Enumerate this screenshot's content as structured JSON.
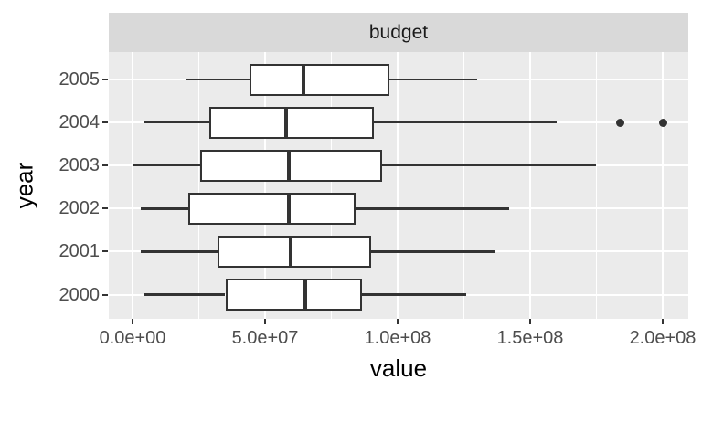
{
  "figure": {
    "background": "#FFFFFF",
    "strip_bg": "#D9D9D9",
    "panel_bg": "#EBEBEB",
    "grid_color": "#FFFFFF",
    "box_stroke": "#333333",
    "box_fill": "#FFFFFF",
    "axis_text_color": "#4D4D4D",
    "axis_title_color": "#000000"
  },
  "chart_data": {
    "type": "boxplot",
    "orientation": "horizontal",
    "facet": "budget",
    "xlabel": "value",
    "ylabel": "year",
    "legend": "none",
    "grid": "on",
    "x_axis": {
      "tick_labels": [
        "0.0e+00",
        "5.0e+07",
        "1.0e+08",
        "1.5e+08",
        "2.0e+08"
      ],
      "tick_values": [
        0,
        50000000,
        100000000,
        150000000,
        200000000
      ],
      "minor_tick_values": [
        25000000,
        75000000,
        125000000,
        175000000
      ],
      "range": [
        -9000000,
        209000000
      ]
    },
    "categories": [
      "2005",
      "2004",
      "2003",
      "2002",
      "2001",
      "2000"
    ],
    "series": [
      {
        "year": "2005",
        "whisker_min": 20000000,
        "q1": 44000000,
        "median": 64500000,
        "q3": 97000000,
        "whisker_max": 130000000,
        "outliers": []
      },
      {
        "year": "2004",
        "whisker_min": 4500000,
        "q1": 29000000,
        "median": 58000000,
        "q3": 91000000,
        "whisker_max": 160000000,
        "outliers": [
          184000000,
          200000000
        ]
      },
      {
        "year": "2003",
        "whisker_min": 500000,
        "q1": 25500000,
        "median": 59000000,
        "q3": 94000000,
        "whisker_max": 175000000,
        "outliers": []
      },
      {
        "year": "2002",
        "whisker_min": 3000000,
        "q1": 21000000,
        "median": 59000000,
        "q3": 84000000,
        "whisker_max": 142000000,
        "outliers": []
      },
      {
        "year": "2001",
        "whisker_min": 3000000,
        "q1": 32000000,
        "median": 59500000,
        "q3": 90000000,
        "whisker_max": 137000000,
        "outliers": []
      },
      {
        "year": "2000",
        "whisker_min": 4500000,
        "q1": 35000000,
        "median": 65000000,
        "q3": 86500000,
        "whisker_max": 126000000,
        "outliers": []
      }
    ]
  }
}
